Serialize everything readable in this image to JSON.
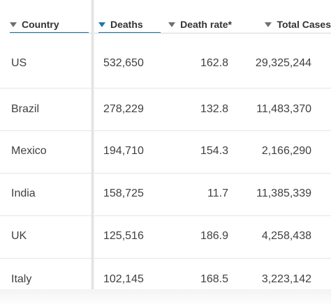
{
  "headers": {
    "country": "Country",
    "deaths": "Deaths",
    "death_rate": "Death rate*",
    "total_cases": "Total Cases"
  },
  "colors": {
    "sort_active": "#1f77a6",
    "sort_inactive": "#6e6e73",
    "underline": "#1f7a9c"
  },
  "rows": [
    {
      "country": "US",
      "deaths": "532,650",
      "death_rate": "162.8",
      "total_cases": "29,325,244"
    },
    {
      "country": "Brazil",
      "deaths": "278,229",
      "death_rate": "132.8",
      "total_cases": "11,483,370"
    },
    {
      "country": "Mexico",
      "deaths": "194,710",
      "death_rate": "154.3",
      "total_cases": "2,166,290"
    },
    {
      "country": "India",
      "deaths": "158,725",
      "death_rate": "11.7",
      "total_cases": "11,385,339"
    },
    {
      "country": "UK",
      "deaths": "125,516",
      "death_rate": "186.9",
      "total_cases": "4,258,438"
    },
    {
      "country": "Italy",
      "deaths": "102,145",
      "death_rate": "168.5",
      "total_cases": "3,223,142"
    }
  ]
}
